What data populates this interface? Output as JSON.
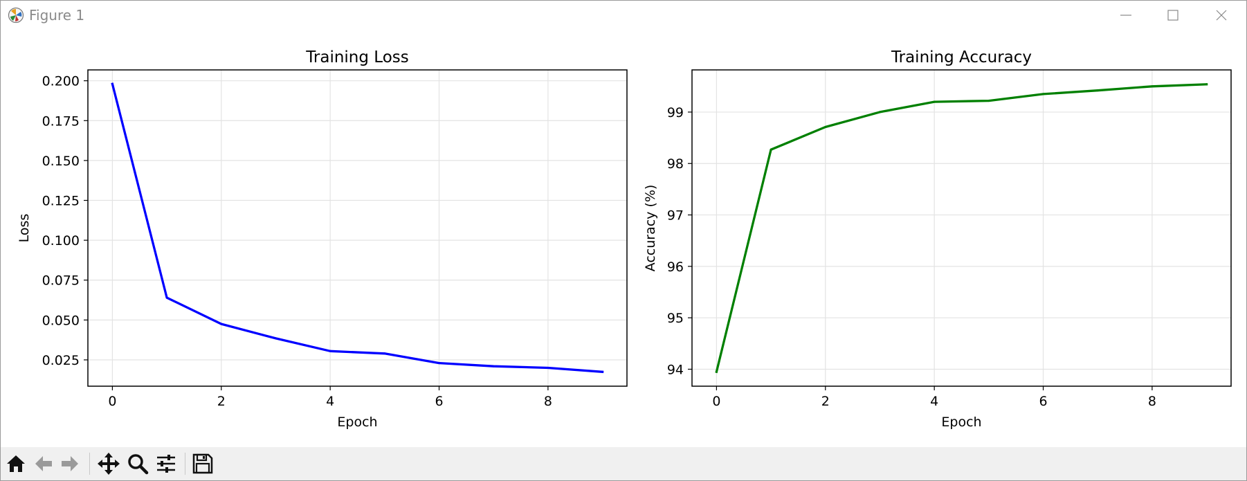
{
  "window": {
    "title": "Figure 1",
    "icons": {
      "app": "matplotlib-icon",
      "minimize": "minimize-icon",
      "maximize": "maximize-icon",
      "close": "close-icon"
    }
  },
  "toolbar": {
    "buttons": [
      {
        "name": "home-icon",
        "title": "Reset original view"
      },
      {
        "name": "back-arrow-icon",
        "title": "Back to previous view"
      },
      {
        "name": "forward-arrow-icon",
        "title": "Forward to next view"
      },
      {
        "name": "pan-icon",
        "title": "Pan axes"
      },
      {
        "name": "zoom-icon",
        "title": "Zoom to rectangle"
      },
      {
        "name": "configure-subplots-icon",
        "title": "Configure subplots"
      },
      {
        "name": "save-icon",
        "title": "Save the figure"
      }
    ]
  },
  "chart_data": [
    {
      "type": "line",
      "title": "Training Loss",
      "xlabel": "Epoch",
      "ylabel": "Loss",
      "x": [
        0,
        1,
        2,
        3,
        4,
        5,
        6,
        7,
        8,
        9
      ],
      "series": [
        {
          "values": [
            0.198,
            0.064,
            0.0475,
            0.0385,
            0.0305,
            0.029,
            0.023,
            0.021,
            0.02,
            0.0175
          ],
          "color": "#0000ff"
        }
      ],
      "xlim": [
        -0.45,
        9.45
      ],
      "ylim": [
        0.0085,
        0.2068
      ],
      "xticks": [
        0,
        2,
        4,
        6,
        8
      ],
      "xtick_labels": [
        "0",
        "2",
        "4",
        "6",
        "8"
      ],
      "yticks": [
        0.025,
        0.05,
        0.075,
        0.1,
        0.125,
        0.15,
        0.175,
        0.2
      ],
      "ytick_labels": [
        "0.025",
        "0.050",
        "0.075",
        "0.100",
        "0.125",
        "0.150",
        "0.175",
        "0.200"
      ],
      "grid": true
    },
    {
      "type": "line",
      "title": "Training Accuracy",
      "xlabel": "Epoch",
      "ylabel": "Accuracy (%)",
      "x": [
        0,
        1,
        2,
        3,
        4,
        5,
        6,
        7,
        8,
        9
      ],
      "series": [
        {
          "values": [
            93.95,
            98.27,
            98.71,
            99.0,
            99.2,
            99.22,
            99.35,
            99.42,
            99.5,
            99.54
          ],
          "color": "#008000"
        }
      ],
      "xlim": [
        -0.45,
        9.45
      ],
      "ylim": [
        93.67,
        99.82
      ],
      "xticks": [
        0,
        2,
        4,
        6,
        8
      ],
      "xtick_labels": [
        "0",
        "2",
        "4",
        "6",
        "8"
      ],
      "yticks": [
        94,
        95,
        96,
        97,
        98,
        99
      ],
      "ytick_labels": [
        "94",
        "95",
        "96",
        "97",
        "98",
        "99"
      ],
      "grid": true
    }
  ]
}
